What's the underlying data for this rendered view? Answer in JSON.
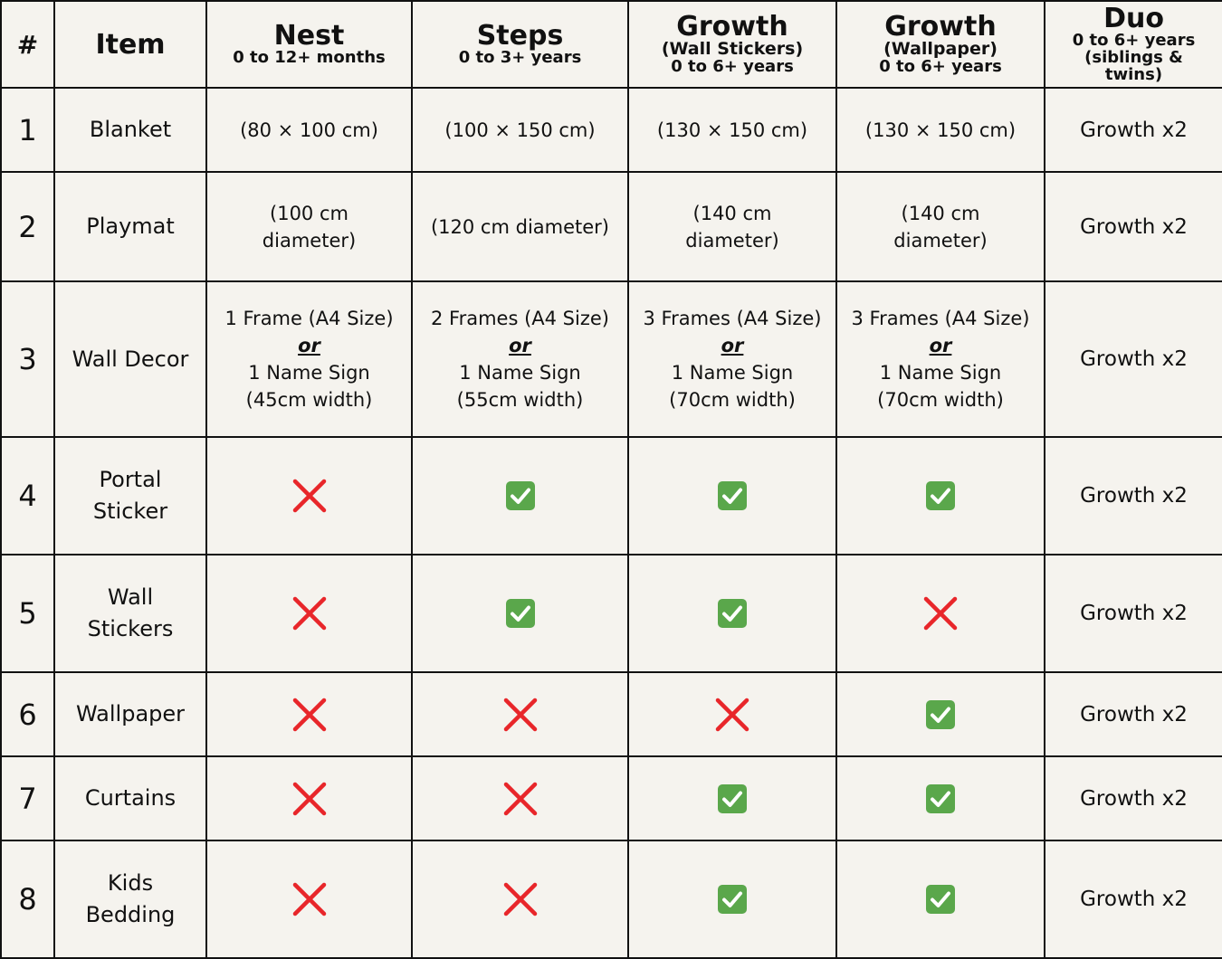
{
  "header": {
    "hash": "#",
    "item": "Item",
    "plans": [
      {
        "title": "Nest",
        "sub_bold": "",
        "sub": "0 to 12+ months"
      },
      {
        "title": "Steps",
        "sub_bold": "",
        "sub": "0 to 3+ years"
      },
      {
        "title": "Growth",
        "sub_bold": "(Wall Stickers)",
        "sub": "0 to 6+ years"
      },
      {
        "title": "Growth",
        "sub_bold": "(Wallpaper)",
        "sub": "0 to 6+ years"
      },
      {
        "title": "Duo",
        "sub_bold": "",
        "sub": "0 to 6+ years (siblings & twins)"
      }
    ]
  },
  "rows": [
    {
      "num": "1",
      "item": "Blanket",
      "height": 93,
      "cells": [
        {
          "type": "text",
          "text": "(80 × 100 cm)"
        },
        {
          "type": "text",
          "text": "(100 × 150 cm)"
        },
        {
          "type": "text",
          "text": "(130 × 150 cm)"
        },
        {
          "type": "text",
          "text": "(130 × 150 cm)"
        }
      ],
      "duo": "Growth x2"
    },
    {
      "num": "2",
      "item": "Playmat",
      "height": 121,
      "cells": [
        {
          "type": "text",
          "text": "(100 cm diameter)",
          "narrow": true
        },
        {
          "type": "text",
          "text": "(120 cm diameter)"
        },
        {
          "type": "text",
          "text": "(140 cm diameter)",
          "narrow": true
        },
        {
          "type": "text",
          "text": "(140 cm diameter)",
          "narrow": true
        }
      ],
      "duo": "Growth x2"
    },
    {
      "num": "3",
      "item": "Wall Decor",
      "height": 172,
      "cells": [
        {
          "type": "decor",
          "line1": "1 Frame (A4 Size)",
          "or": "or",
          "line2": "1 Name Sign",
          "line3": "(45cm width)"
        },
        {
          "type": "decor",
          "line1": "2 Frames (A4 Size)",
          "or": "or",
          "line2": "1 Name Sign",
          "line3": "(55cm width)"
        },
        {
          "type": "decor",
          "line1": "3 Frames (A4 Size)",
          "or": "or",
          "line2": "1 Name Sign",
          "line3": "(70cm width)"
        },
        {
          "type": "decor",
          "line1": "3 Frames (A4 Size)",
          "or": "or",
          "line2": "1 Name Sign",
          "line3": "(70cm width)"
        }
      ],
      "duo": "Growth x2"
    },
    {
      "num": "4",
      "item": "Portal Sticker",
      "height": 130,
      "cells": [
        {
          "type": "cross"
        },
        {
          "type": "check"
        },
        {
          "type": "check"
        },
        {
          "type": "check"
        }
      ],
      "duo": "Growth x2"
    },
    {
      "num": "5",
      "item": "Wall Stickers",
      "height": 130,
      "cells": [
        {
          "type": "cross"
        },
        {
          "type": "check"
        },
        {
          "type": "check"
        },
        {
          "type": "cross"
        }
      ],
      "duo": "Growth x2"
    },
    {
      "num": "6",
      "item": "Wallpaper",
      "height": 93,
      "cells": [
        {
          "type": "cross"
        },
        {
          "type": "cross"
        },
        {
          "type": "cross"
        },
        {
          "type": "check"
        }
      ],
      "duo": "Growth x2"
    },
    {
      "num": "7",
      "item": "Curtains",
      "height": 93,
      "cells": [
        {
          "type": "cross"
        },
        {
          "type": "cross"
        },
        {
          "type": "check"
        },
        {
          "type": "check"
        }
      ],
      "duo": "Growth x2"
    },
    {
      "num": "8",
      "item": "Kids Bedding",
      "height": 130,
      "cells": [
        {
          "type": "cross"
        },
        {
          "type": "cross"
        },
        {
          "type": "check"
        },
        {
          "type": "check"
        }
      ],
      "duo": "Growth x2"
    }
  ],
  "colors": {
    "check": "#5aa74b",
    "cross": "#e8262a",
    "background": "#f5f3ee",
    "border": "#111111"
  }
}
